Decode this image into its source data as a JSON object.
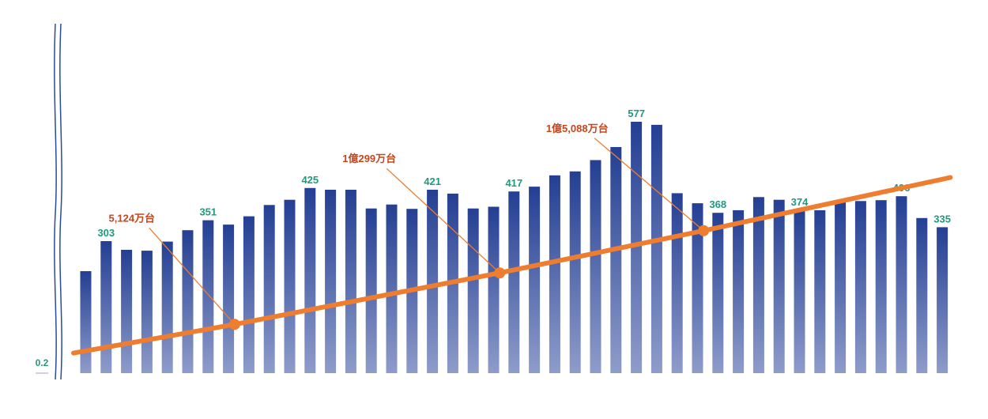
{
  "chart_data": {
    "type": "bar",
    "y_tick_label": "0.2",
    "series": [
      {
        "type": "bar",
        "values": [
          234,
          303,
          283,
          281,
          302,
          328,
          351,
          341,
          360,
          386,
          398,
          425,
          421,
          421,
          378,
          387,
          377,
          421,
          412,
          378,
          382,
          417,
          428,
          454,
          463,
          489,
          519,
          577,
          570,
          413,
          390,
          368,
          374,
          404,
          398,
          374,
          374,
          393,
          395,
          397,
          406,
          356,
          335
        ],
        "data_labels": {
          "1": "303",
          "6": "351",
          "11": "425",
          "17": "421",
          "21": "417",
          "27": "577",
          "31": "368",
          "35": "374",
          "40": "406",
          "42": "335"
        }
      },
      {
        "type": "line",
        "points": [
          {
            "x": -0.6,
            "y": 46
          },
          {
            "x": 7.3,
            "y": 112
          },
          {
            "x": 20.3,
            "y": 230
          },
          {
            "x": 30.3,
            "y": 327
          },
          {
            "x": 42.4,
            "y": 449
          }
        ]
      }
    ],
    "annotations": [
      {
        "text": "5,124万台",
        "at_bar": 7.3
      },
      {
        "text": "1億299万台",
        "at_bar": 20.3
      },
      {
        "text": "1億5,088万台",
        "at_bar": 30.3
      }
    ],
    "colors": {
      "bar_top": "#243f93",
      "bar_bottom": "#8e9cca",
      "line": "#ef7d2f",
      "callout_text": "#c6461c",
      "callout_leader": "#ef7d2f",
      "data_label": "#1f9a7e",
      "axis_break": "#2a4a9e"
    }
  }
}
